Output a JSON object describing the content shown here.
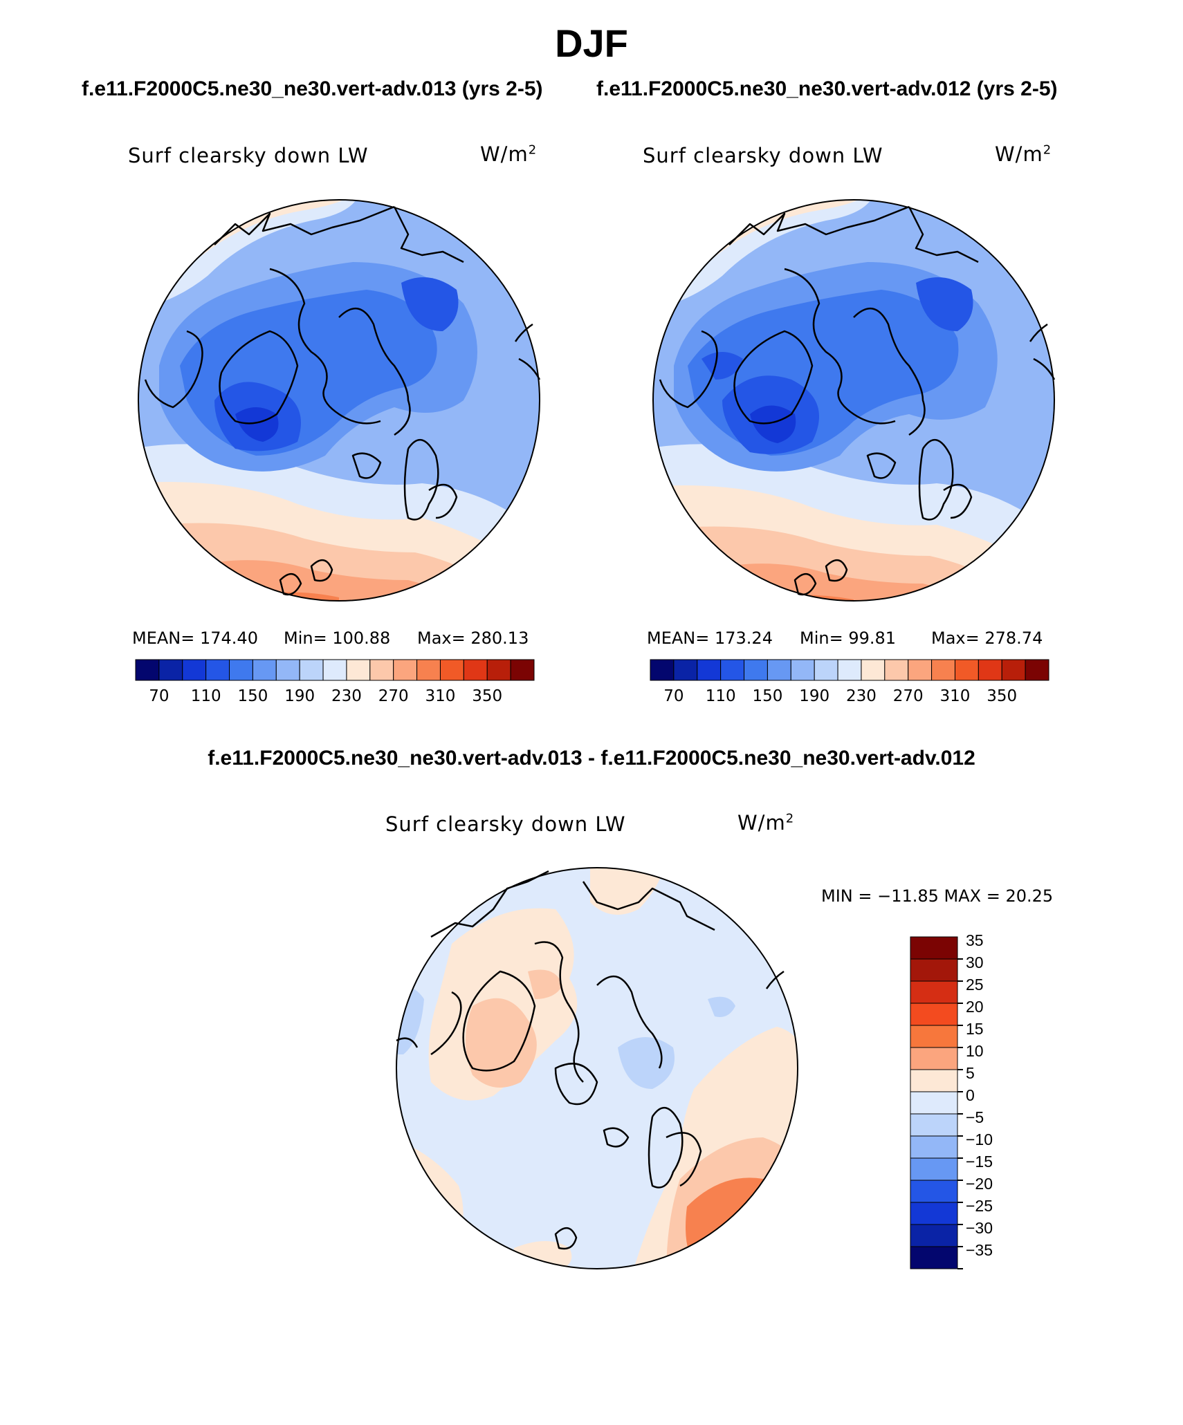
{
  "title": "DJF",
  "panels": [
    {
      "case": "f.e11.F2000C5.ne30_ne30.vert-adv.013 (yrs 2-5)",
      "variable": "Surf clearsky down LW",
      "units": "W/m",
      "units_exp": "2",
      "stats": {
        "mean": "MEAN= 174.40",
        "min": "Min= 100.88",
        "max": "Max= 280.13"
      }
    },
    {
      "case": "f.e11.F2000C5.ne30_ne30.vert-adv.012 (yrs 2-5)",
      "variable": "Surf clearsky down LW",
      "units": "W/m",
      "units_exp": "2",
      "stats": {
        "mean": "MEAN= 173.24",
        "min": "Min=  99.81",
        "max": "Max= 278.74"
      }
    }
  ],
  "difference": {
    "title": "f.e11.F2000C5.ne30_ne30.vert-adv.013 - f.e11.F2000C5.ne30_ne30.vert-adv.012",
    "variable": "Surf clearsky down LW",
    "units": "W/m",
    "units_exp": "2",
    "minmax": "MIN = −11.85 MAX =  20.25"
  },
  "colorbar_abs": {
    "colors": [
      "#03066e",
      "#0a23a6",
      "#1338d6",
      "#2456e6",
      "#3f79ee",
      "#6798f3",
      "#93b7f7",
      "#bcd4fa",
      "#deeafc",
      "#fde8d6",
      "#fcc8ab",
      "#fba57e",
      "#f7814f",
      "#f15a27",
      "#e03716",
      "#b81f0a",
      "#7b0403"
    ],
    "tick_labels": [
      "70",
      "110",
      "150",
      "190",
      "230",
      "270",
      "310",
      "350"
    ]
  },
  "colorbar_diff": {
    "colors": [
      "#7b0403",
      "#a3170a",
      "#d52e14",
      "#f34b1f",
      "#f7773c",
      "#fba57e",
      "#fde8d6",
      "#deeafc",
      "#bcd4fa",
      "#93b7f7",
      "#6798f3",
      "#2456e6",
      "#1338d6",
      "#0a23a6",
      "#03066e"
    ],
    "tick_labels": [
      "35",
      "30",
      "25",
      "20",
      "15",
      "10",
      "5",
      "0",
      "−5",
      "−10",
      "−15",
      "−20",
      "−25",
      "−30",
      "−35"
    ]
  }
}
